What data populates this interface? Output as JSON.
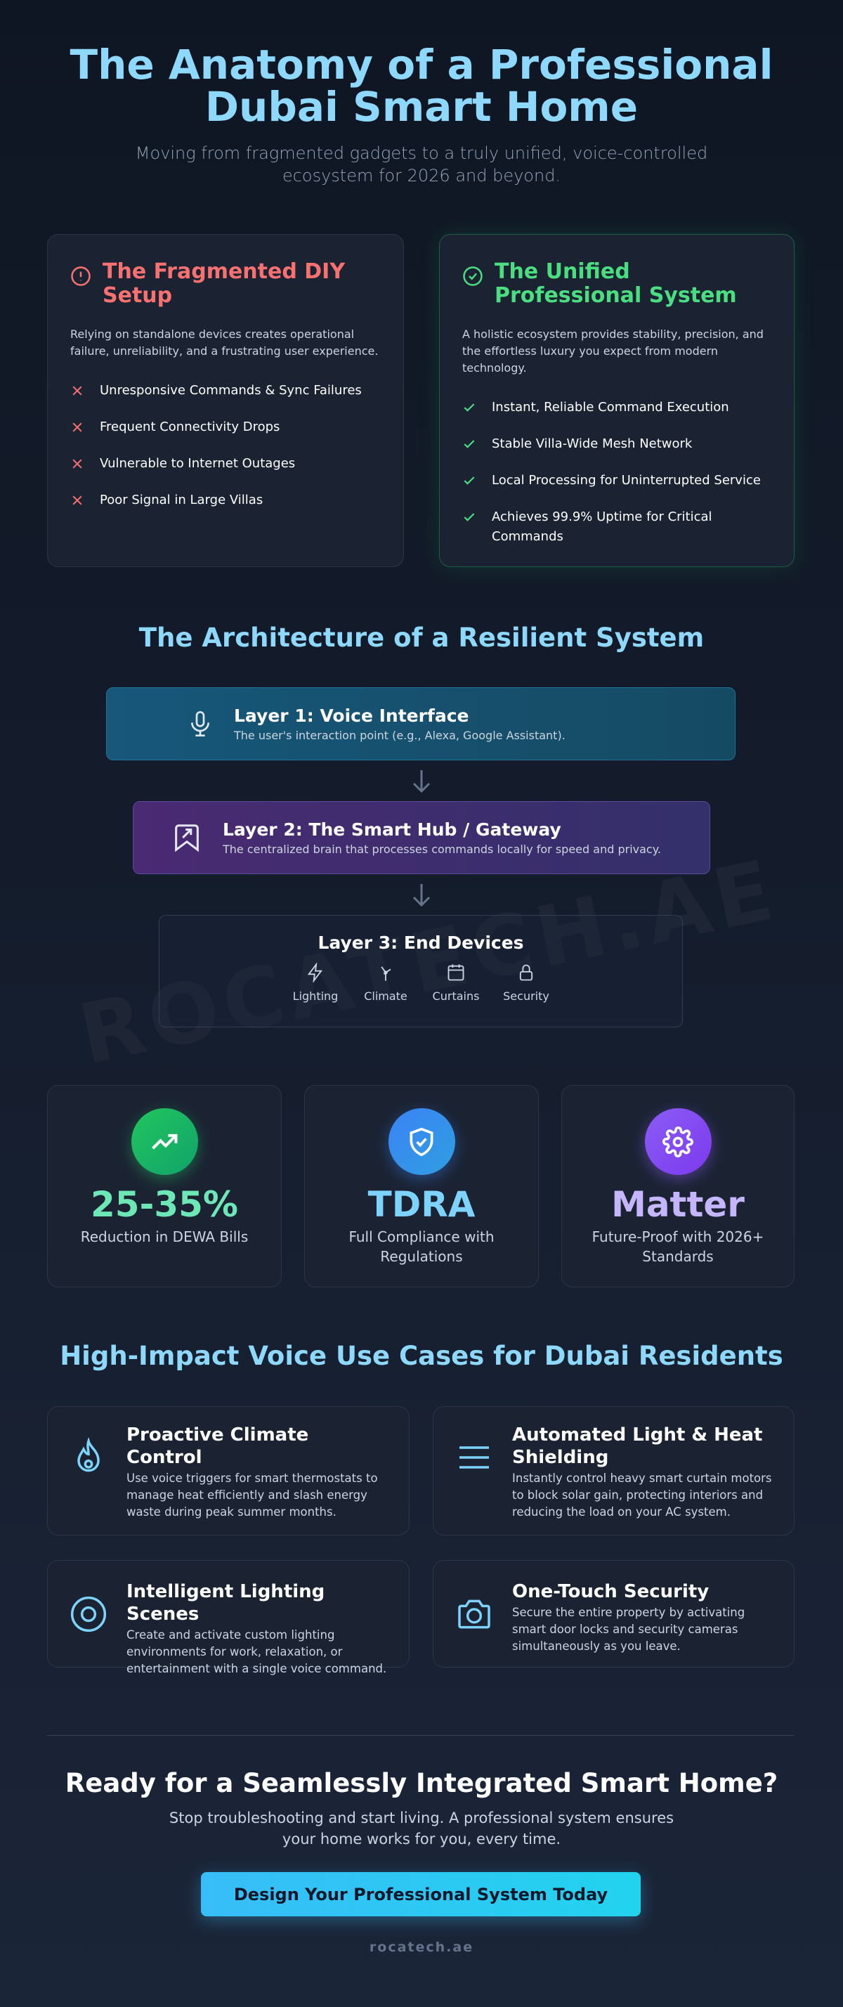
{
  "header": {
    "title": "The Anatomy of a Professional Dubai Smart Home",
    "subtitle": "Moving from fragmented gadgets to a truly unified, voice-controlled ecosystem for 2026 and beyond."
  },
  "comparison": [
    {
      "title": "The Fragmented DIY Setup",
      "description": "Relying on standalone devices creates operational failure, unreliability, and a frustrating user experience.",
      "items": [
        "Unresponsive Commands & Sync Failures",
        "Frequent Connectivity Drops",
        "Vulnerable to Internet Outages",
        "Poor Signal in Large Villas"
      ]
    },
    {
      "title": "The Unified Professional System",
      "description": "A holistic ecosystem provides stability, precision, and the effortless luxury you expect from modern technology.",
      "items": [
        "Instant, Reliable Command Execution",
        "Stable Villa-Wide Mesh Network",
        "Local Processing for Uninterrupted Service",
        "Achieves 99.9% Uptime for Critical Commands"
      ]
    }
  ],
  "architecture": {
    "title": "The Architecture of a Resilient System",
    "layers": [
      {
        "title": "Layer 1: Voice Interface",
        "description": "The user's interaction point (e.g., Alexa, Google Assistant)."
      },
      {
        "title": "Layer 2: The Smart Hub / Gateway",
        "description": "The centralized brain that processes commands locally for speed and privacy."
      },
      {
        "title": "Layer 3: End Devices",
        "devices": [
          "Lighting",
          "Climate",
          "Curtains",
          "Security"
        ]
      }
    ]
  },
  "watermark": "ROCATECH.AE",
  "stats": [
    {
      "value": "25-35%",
      "label": "Reduction in DEWA Bills"
    },
    {
      "value": "TDRA",
      "label": "Full Compliance with Regulations"
    },
    {
      "value": "Matter",
      "label": "Future-Proof with 2026+ Standards"
    }
  ],
  "use_cases": {
    "title": "High-Impact Voice Use Cases for Dubai Residents",
    "items": [
      {
        "title": "Proactive Climate Control",
        "description": "Use voice triggers for smart thermostats to manage heat efficiently and slash energy waste during peak summer months."
      },
      {
        "title": "Automated Light & Heat Shielding",
        "description": "Instantly control heavy smart curtain motors to block solar gain, protecting interiors and reducing the load on your AC system."
      },
      {
        "title": "Intelligent Lighting Scenes",
        "description": "Create and activate custom lighting environments for work, relaxation, or entertainment with a single voice command."
      },
      {
        "title": "One-Touch Security",
        "description": "Secure the entire property by activating smart door locks and security cameras simultaneously as you leave."
      }
    ]
  },
  "cta": {
    "title": "Ready for a Seamlessly Integrated Smart Home?",
    "text": "Stop troubleshooting and start living. A professional system ensures your home works for you, every time.",
    "button": "Design Your Professional System Today"
  },
  "footer": "rocatech.ae"
}
